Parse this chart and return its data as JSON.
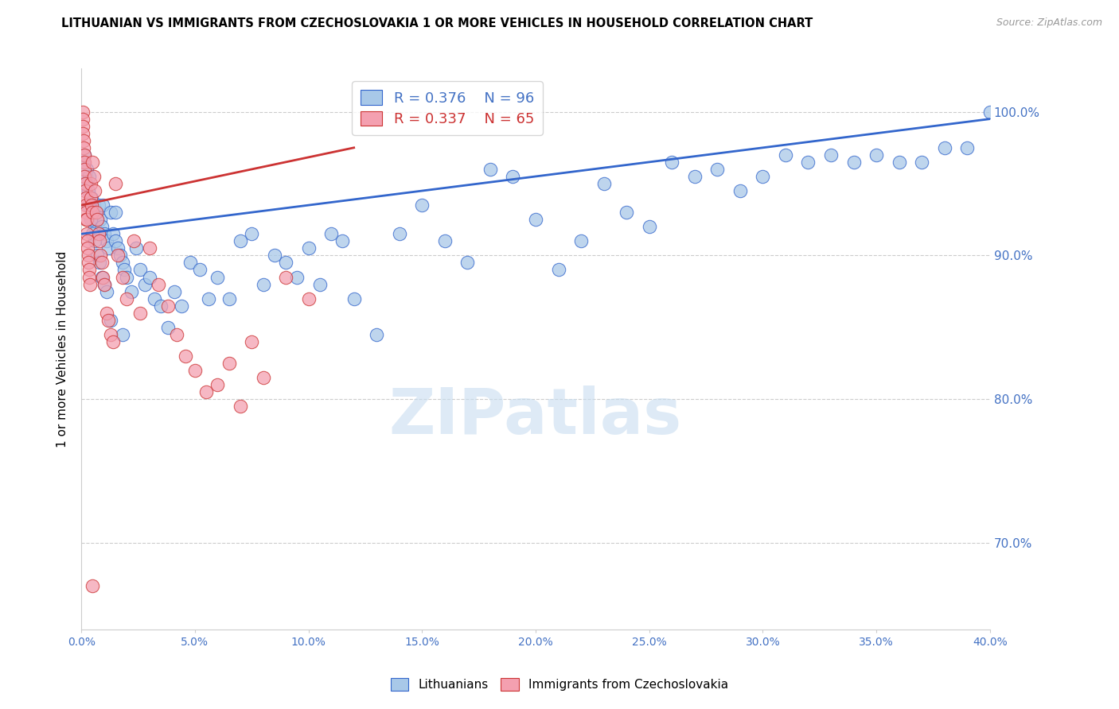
{
  "title": "LITHUANIAN VS IMMIGRANTS FROM CZECHOSLOVAKIA 1 OR MORE VEHICLES IN HOUSEHOLD CORRELATION CHART",
  "source": "Source: ZipAtlas.com",
  "ylabel": "1 or more Vehicles in Household",
  "xlim": [
    0.0,
    40.0
  ],
  "ylim": [
    64.0,
    103.0
  ],
  "yticks": [
    70.0,
    80.0,
    90.0,
    100.0
  ],
  "xticks": [
    0.0,
    5.0,
    10.0,
    15.0,
    20.0,
    25.0,
    30.0,
    35.0,
    40.0
  ],
  "legend_r_blue": "R = 0.376",
  "legend_n_blue": "N = 96",
  "legend_r_pink": "R = 0.337",
  "legend_n_pink": "N = 65",
  "color_blue": "#a8c8e8",
  "color_pink": "#f4a0b0",
  "color_line_blue": "#3366cc",
  "color_line_pink": "#cc3333",
  "color_axis": "#4472c4",
  "watermark": "ZIPatlas",
  "blue_trend_x": [
    0.0,
    40.0
  ],
  "blue_trend_y": [
    91.5,
    99.5
  ],
  "pink_trend_x": [
    0.0,
    12.0
  ],
  "pink_trend_y": [
    93.5,
    97.5
  ],
  "blue_x": [
    0.1,
    0.15,
    0.2,
    0.25,
    0.3,
    0.35,
    0.4,
    0.45,
    0.5,
    0.55,
    0.6,
    0.65,
    0.7,
    0.75,
    0.8,
    0.85,
    0.9,
    0.95,
    1.0,
    1.1,
    1.2,
    1.3,
    1.4,
    1.5,
    1.6,
    1.7,
    1.8,
    1.9,
    2.0,
    2.2,
    2.4,
    2.6,
    2.8,
    3.0,
    3.2,
    3.5,
    3.8,
    4.1,
    4.4,
    4.8,
    5.2,
    5.6,
    6.0,
    6.5,
    7.0,
    7.5,
    8.0,
    8.5,
    9.0,
    9.5,
    10.0,
    10.5,
    11.0,
    11.5,
    12.0,
    13.0,
    14.0,
    15.0,
    16.0,
    17.0,
    18.0,
    19.0,
    20.0,
    21.0,
    22.0,
    23.0,
    24.0,
    25.0,
    26.0,
    27.0,
    28.0,
    29.0,
    30.0,
    31.0,
    32.0,
    33.0,
    34.0,
    35.0,
    36.0,
    37.0,
    38.0,
    39.0,
    40.0,
    0.2,
    0.3,
    0.4,
    0.5,
    0.6,
    0.7,
    0.8,
    0.9,
    1.0,
    1.1,
    1.3,
    1.5,
    1.8
  ],
  "blue_y": [
    96.5,
    97.0,
    95.5,
    96.0,
    94.5,
    95.5,
    93.5,
    94.0,
    92.5,
    93.5,
    92.0,
    93.0,
    92.5,
    93.5,
    91.5,
    92.5,
    92.0,
    93.5,
    91.5,
    91.0,
    90.5,
    93.0,
    91.5,
    91.0,
    90.5,
    90.0,
    89.5,
    89.0,
    88.5,
    87.5,
    90.5,
    89.0,
    88.0,
    88.5,
    87.0,
    86.5,
    85.0,
    87.5,
    86.5,
    89.5,
    89.0,
    87.0,
    88.5,
    87.0,
    91.0,
    91.5,
    88.0,
    90.0,
    89.5,
    88.5,
    90.5,
    88.0,
    91.5,
    91.0,
    87.0,
    84.5,
    91.5,
    93.5,
    91.0,
    89.5,
    96.0,
    95.5,
    92.5,
    89.0,
    91.0,
    95.0,
    93.0,
    92.0,
    96.5,
    95.5,
    96.0,
    94.5,
    95.5,
    97.0,
    96.5,
    97.0,
    96.5,
    97.0,
    96.5,
    96.5,
    97.5,
    97.5,
    100.0,
    95.0,
    93.5,
    92.5,
    91.5,
    91.0,
    90.0,
    89.5,
    88.5,
    88.0,
    87.5,
    85.5,
    93.0,
    84.5
  ],
  "pink_x": [
    0.05,
    0.05,
    0.08,
    0.08,
    0.1,
    0.1,
    0.12,
    0.12,
    0.15,
    0.15,
    0.18,
    0.18,
    0.2,
    0.2,
    0.22,
    0.22,
    0.25,
    0.25,
    0.28,
    0.28,
    0.3,
    0.3,
    0.33,
    0.35,
    0.38,
    0.4,
    0.42,
    0.45,
    0.48,
    0.5,
    0.55,
    0.6,
    0.65,
    0.7,
    0.75,
    0.8,
    0.85,
    0.9,
    0.95,
    1.0,
    1.1,
    1.2,
    1.3,
    1.4,
    1.5,
    1.6,
    1.8,
    2.0,
    2.3,
    2.6,
    3.0,
    3.4,
    3.8,
    4.2,
    4.6,
    5.0,
    5.5,
    6.0,
    6.5,
    7.0,
    7.5,
    8.0,
    9.0,
    10.0,
    0.5
  ],
  "pink_y": [
    100.0,
    99.5,
    99.0,
    98.5,
    98.0,
    97.5,
    97.0,
    96.5,
    96.0,
    95.5,
    95.0,
    94.5,
    94.0,
    93.5,
    93.0,
    92.5,
    92.5,
    91.5,
    91.0,
    90.5,
    90.0,
    89.5,
    89.0,
    88.5,
    88.0,
    95.0,
    94.0,
    93.5,
    93.0,
    96.5,
    95.5,
    94.5,
    93.0,
    92.5,
    91.5,
    91.0,
    90.0,
    89.5,
    88.5,
    88.0,
    86.0,
    85.5,
    84.5,
    84.0,
    95.0,
    90.0,
    88.5,
    87.0,
    91.0,
    86.0,
    90.5,
    88.0,
    86.5,
    84.5,
    83.0,
    82.0,
    80.5,
    81.0,
    82.5,
    79.5,
    84.0,
    81.5,
    88.5,
    87.0,
    67.0
  ]
}
